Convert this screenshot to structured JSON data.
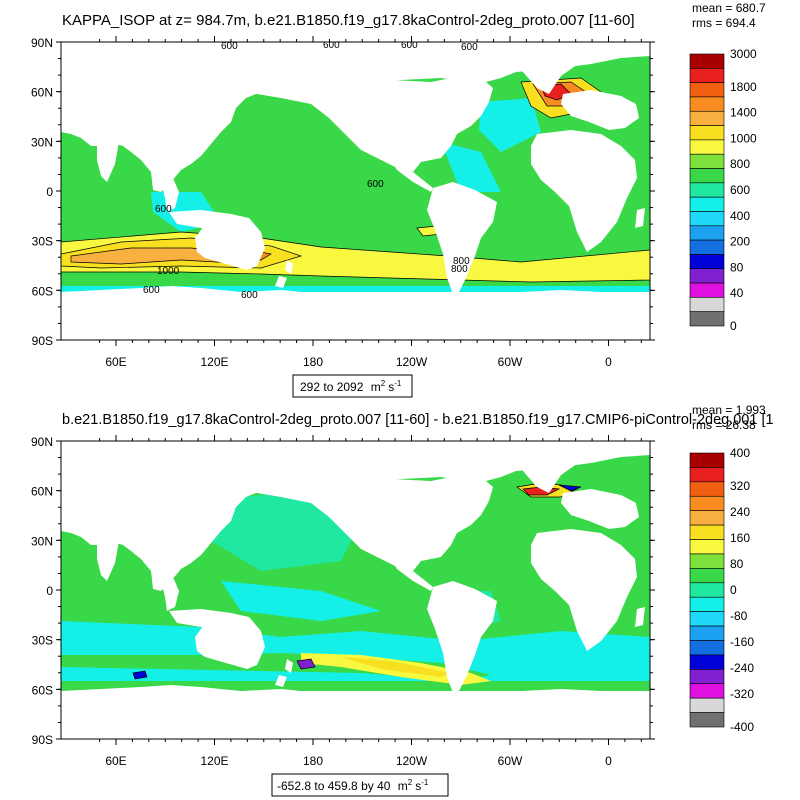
{
  "chart_data": [
    {
      "type": "heatmap",
      "subtype": "filled-contour-map",
      "title": "KAPPA_ISOP at z= 984.7m, b.e21.B1850.f19_g17.8kaControl-2deg_proto.007 [11-60]",
      "stats": {
        "mean": "mean = 680.7",
        "rms": "rms = 694.4"
      },
      "range_label": "292 to 2092",
      "units": {
        "base": "m",
        "exp": "2",
        "tail": "s",
        "tail_exp": "-1"
      },
      "lat_ticks": [
        "90N",
        "60N",
        "30N",
        "0",
        "30S",
        "60S",
        "90S"
      ],
      "lon_ticks": [
        "60E",
        "120E",
        "180",
        "120W",
        "60W",
        "0"
      ],
      "colorbar_labels": [
        "3000",
        "1800",
        "1400",
        "1000",
        "800",
        "600",
        "400",
        "200",
        "80",
        "40",
        "0"
      ],
      "colorbar_colors": [
        "#a80000",
        "#e82020",
        "#f06010",
        "#f88c20",
        "#f8b040",
        "#f8e020",
        "#f8f840",
        "#7ee03a",
        "#38d848",
        "#20e8a0",
        "#14f0e8",
        "#20d8f8",
        "#1ca0f0",
        "#1470e0",
        "#0000d8",
        "#8020d0",
        "#e010e0",
        "#d8d8d8",
        "#707070"
      ],
      "contour_labels": [
        "600",
        "800",
        "1000"
      ],
      "contour_values": [
        600,
        800,
        1000,
        1400
      ],
      "ocean_base_color": "#38d848"
    },
    {
      "type": "heatmap",
      "subtype": "filled-contour-map",
      "title": "b.e21.B1850.f19_g17.8kaControl-2deg_proto.007 [11-60] - b.e21.B1850.f19_g17.CMIP6-piControl-2deg.001 [1",
      "stats": {
        "mean": "mean = 1.993",
        "rms": "rms = 26.38"
      },
      "range_label": "-652.8 to 459.8 by 40",
      "units": {
        "base": "m",
        "exp": "2",
        "tail": "s",
        "tail_exp": "-1"
      },
      "lat_ticks": [
        "90N",
        "60N",
        "30N",
        "0",
        "30S",
        "60S",
        "90S"
      ],
      "lon_ticks": [
        "60E",
        "120E",
        "180",
        "120W",
        "60W",
        "0"
      ],
      "colorbar_labels": [
        "400",
        "320",
        "240",
        "160",
        "80",
        "0",
        "-80",
        "-160",
        "-240",
        "-320",
        "-400"
      ],
      "colorbar_colors": [
        "#a80000",
        "#e82020",
        "#f06010",
        "#f88c20",
        "#f8b040",
        "#f8e020",
        "#f8f840",
        "#7ee03a",
        "#38d848",
        "#20e8a0",
        "#14f0e8",
        "#20d8f8",
        "#1ca0f0",
        "#1470e0",
        "#0000d8",
        "#8020d0",
        "#e010e0",
        "#d8d8d8",
        "#707070"
      ],
      "ocean_base_color": "#38d848"
    }
  ]
}
